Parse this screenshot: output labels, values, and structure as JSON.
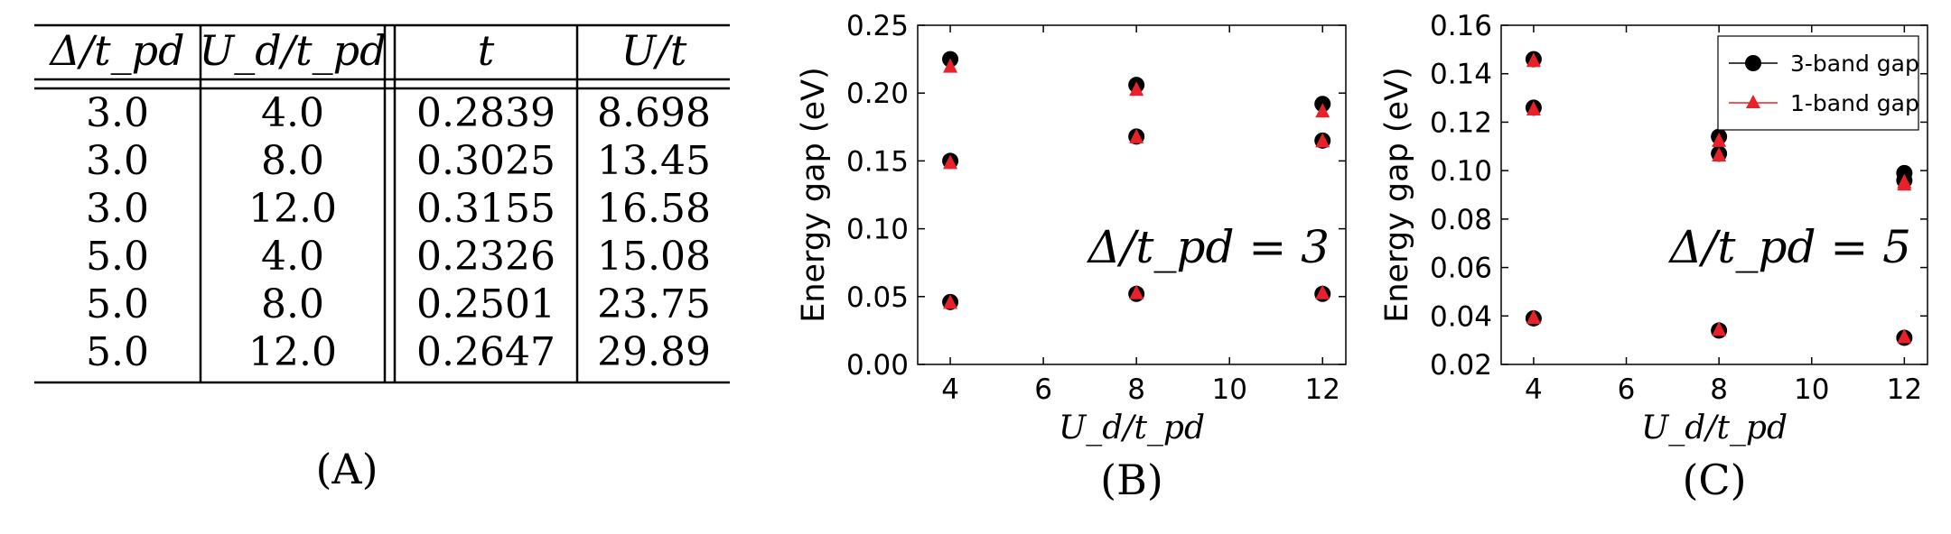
{
  "panel_a": {
    "label": "(A)",
    "columns": [
      "Δ/t_pd",
      "U_d/t_pd",
      "t",
      "U/t"
    ],
    "rows": [
      [
        "3.0",
        "4.0",
        "0.2839",
        "8.698"
      ],
      [
        "3.0",
        "8.0",
        "0.3025",
        "13.45"
      ],
      [
        "3.0",
        "12.0",
        "0.3155",
        "16.58"
      ],
      [
        "5.0",
        "4.0",
        "0.2326",
        "15.08"
      ],
      [
        "5.0",
        "8.0",
        "0.2501",
        "23.75"
      ],
      [
        "5.0",
        "12.0",
        "0.2647",
        "29.89"
      ]
    ]
  },
  "chart_data": [
    {
      "type": "scatter",
      "panel_label": "(B)",
      "annotation": "Δ/t_pd = 3",
      "xlabel": "U_d/t_pd",
      "ylabel": "Energy gap (eV)",
      "xlim": [
        3.3,
        12.5
      ],
      "ylim": [
        0.0,
        0.25
      ],
      "xticks": [
        "4",
        "6",
        "8",
        "10",
        "12"
      ],
      "yticks": [
        "0.00",
        "0.05",
        "0.10",
        "0.15",
        "0.20",
        "0.25"
      ],
      "grid": false,
      "legend": "none",
      "series": [
        {
          "name": "3-band gap",
          "color": "#000000",
          "marker": "circle",
          "points": [
            [
              4,
              0.225
            ],
            [
              4,
              0.15
            ],
            [
              4,
              0.046
            ],
            [
              8,
              0.206
            ],
            [
              8,
              0.168
            ],
            [
              8,
              0.052
            ],
            [
              12,
              0.192
            ],
            [
              12,
              0.165
            ],
            [
              12,
              0.052
            ]
          ]
        },
        {
          "name": "1-band gap",
          "color": "#e8212a",
          "marker": "triangle",
          "points": [
            [
              4,
              0.219
            ],
            [
              4,
              0.148
            ],
            [
              4,
              0.045
            ],
            [
              8,
              0.202
            ],
            [
              8,
              0.167
            ],
            [
              8,
              0.052
            ],
            [
              12,
              0.186
            ],
            [
              12,
              0.164
            ],
            [
              12,
              0.052
            ]
          ]
        }
      ]
    },
    {
      "type": "scatter",
      "panel_label": "(C)",
      "annotation": "Δ/t_pd = 5",
      "xlabel": "U_d/t_pd",
      "ylabel": "Energy gap (eV)",
      "xlim": [
        3.3,
        12.5
      ],
      "ylim": [
        0.02,
        0.16
      ],
      "xticks": [
        "4",
        "6",
        "8",
        "10",
        "12"
      ],
      "yticks": [
        "0.02",
        "0.04",
        "0.06",
        "0.08",
        "0.10",
        "0.12",
        "0.14",
        "0.16"
      ],
      "grid": false,
      "legend": "top-right",
      "series": [
        {
          "name": "3-band gap",
          "color": "#000000",
          "marker": "circle",
          "points": [
            [
              4,
              0.146
            ],
            [
              4,
              0.126
            ],
            [
              4,
              0.039
            ],
            [
              8,
              0.114
            ],
            [
              8,
              0.107
            ],
            [
              8,
              0.034
            ],
            [
              12,
              0.099
            ],
            [
              12,
              0.096
            ],
            [
              12,
              0.031
            ]
          ]
        },
        {
          "name": "1-band gap",
          "color": "#e8212a",
          "marker": "triangle",
          "points": [
            [
              4,
              0.145
            ],
            [
              4,
              0.125
            ],
            [
              4,
              0.039
            ],
            [
              8,
              0.112
            ],
            [
              8,
              0.106
            ],
            [
              8,
              0.034
            ],
            [
              12,
              0.095
            ],
            [
              12,
              0.094
            ],
            [
              12,
              0.031
            ]
          ]
        }
      ]
    }
  ]
}
